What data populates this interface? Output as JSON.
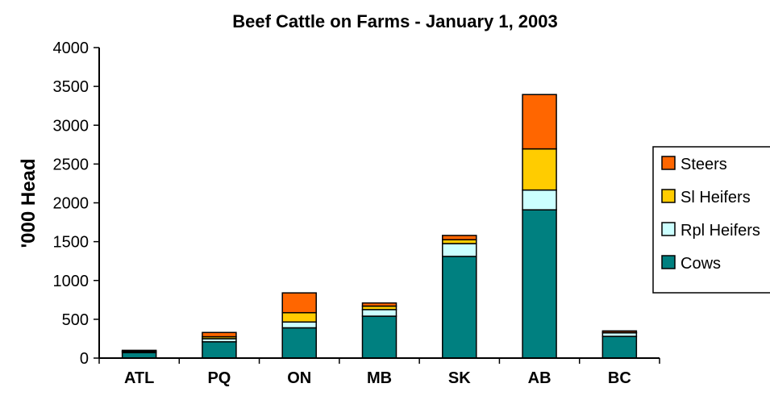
{
  "chart_data": {
    "type": "bar",
    "stacked": true,
    "title": "Beef Cattle on Farms - January 1, 2003",
    "xlabel": "",
    "ylabel": "'000 Head",
    "ylim": [
      0,
      4000
    ],
    "yticks": [
      "0",
      "500",
      "1000",
      "1500",
      "2000",
      "2500",
      "3000",
      "3500",
      "4000"
    ],
    "categories": [
      "ATL",
      "PQ",
      "ON",
      "MB",
      "SK",
      "AB",
      "BC"
    ],
    "grid": false,
    "legend_position": "right",
    "series": [
      {
        "name": "Cows",
        "color": "#008080",
        "values": [
          70,
          210,
          390,
          540,
          1310,
          1910,
          280
        ]
      },
      {
        "name": "Rpl Heifers",
        "color": "#CCFFFF",
        "values": [
          15,
          40,
          75,
          85,
          165,
          255,
          45
        ]
      },
      {
        "name": "Sl Heifers",
        "color": "#FFCC00",
        "values": [
          5,
          25,
          120,
          45,
          50,
          530,
          5
        ]
      },
      {
        "name": "Steers",
        "color": "#FF6600",
        "values": [
          10,
          55,
          255,
          40,
          55,
          700,
          20
        ]
      }
    ]
  }
}
